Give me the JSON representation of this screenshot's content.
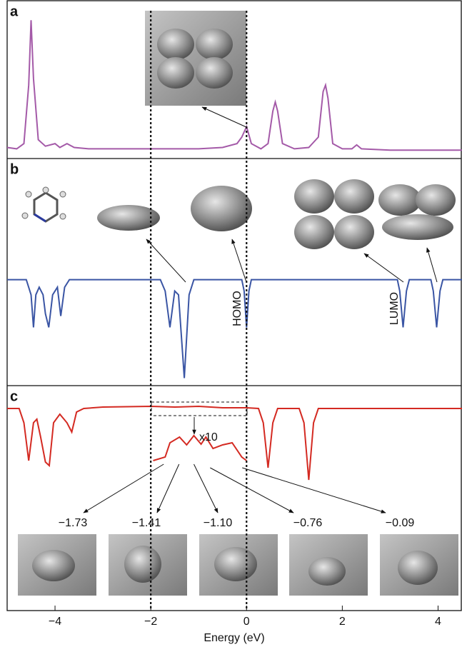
{
  "chart_data": [
    {
      "type": "line",
      "panel_label": "a",
      "xlim": [
        -5,
        4.5
      ],
      "ylim": [
        -6.5,
        115
      ],
      "vlines": [
        -2,
        0
      ],
      "series": [
        {
          "color": "#a45aa8",
          "x": [
            -5.0,
            -4.8,
            -4.65,
            -4.55,
            -4.5,
            -4.45,
            -4.35,
            -4.2,
            -4.0,
            -3.9,
            -3.75,
            -3.6,
            -3.3,
            -3.0,
            -2.0,
            -1.0,
            -0.5,
            -0.2,
            -0.1,
            0.0,
            0.1,
            0.3,
            0.45,
            0.55,
            0.6,
            0.65,
            0.75,
            1.0,
            1.3,
            1.5,
            1.6,
            1.65,
            1.7,
            1.8,
            2.0,
            2.2,
            2.3,
            2.4,
            3.0,
            4.5
          ],
          "values": [
            2,
            1,
            5,
            50,
            100,
            55,
            8,
            3,
            5,
            2,
            5,
            2,
            1,
            1,
            1,
            1,
            2,
            5,
            10,
            18,
            5,
            1,
            5,
            30,
            37,
            30,
            5,
            1,
            2,
            10,
            45,
            50,
            40,
            5,
            1,
            1,
            4,
            1,
            0,
            0
          ]
        }
      ]
    },
    {
      "type": "line",
      "panel_label": "b",
      "xlim": [
        -5,
        4.5
      ],
      "ylim": [
        -140,
        160
      ],
      "annotations": [
        "HOMO",
        "LUMO"
      ],
      "series": [
        {
          "color": "#3a55a4",
          "x": [
            -5.0,
            -4.6,
            -4.5,
            -4.45,
            -4.4,
            -4.33,
            -4.25,
            -4.2,
            -4.13,
            -4.05,
            -3.95,
            -3.88,
            -3.8,
            -3.7,
            -1.8,
            -1.7,
            -1.6,
            -1.5,
            -1.42,
            -1.3,
            -1.2,
            -1.1,
            -0.1,
            -0.05,
            0.0,
            0.05,
            0.1,
            3.15,
            3.2,
            3.27,
            3.34,
            3.4,
            3.85,
            3.9,
            3.97,
            4.04,
            4.1,
            4.5
          ],
          "values": [
            0,
            0,
            -20,
            -63,
            -20,
            -10,
            -20,
            -45,
            -63,
            -20,
            -10,
            -48,
            -10,
            0,
            0,
            -15,
            -63,
            -15,
            -20,
            -130,
            -20,
            0,
            0,
            -15,
            -63,
            -15,
            0,
            0,
            -15,
            -63,
            -15,
            0,
            0,
            -15,
            -63,
            -15,
            0,
            0
          ]
        }
      ]
    },
    {
      "type": "line",
      "panel_label": "c",
      "xlim": [
        -5,
        4.5
      ],
      "ylim": [
        -283,
        32
      ],
      "x_label": "Energy (eV)",
      "xticks": [
        {
          "value": -4,
          "label": "−4"
        },
        {
          "value": -2,
          "label": "−2"
        },
        0,
        2,
        4
      ],
      "magnification": "x10",
      "annotations": {
        "values": [
          -1.73,
          -1.41,
          -1.1,
          -0.76,
          -0.09
        ],
        "value_labels": [
          "−1.73",
          "−1.41",
          "−1.10",
          "−0.76",
          "−0.09"
        ]
      },
      "series": [
        {
          "color": "#d42a22",
          "x": [
            -5.0,
            -4.75,
            -4.65,
            -4.55,
            -4.45,
            -4.38,
            -4.3,
            -4.2,
            -4.12,
            -4.03,
            -3.9,
            -3.75,
            -3.65,
            -3.55,
            -3.4,
            -3.0,
            -2.0,
            -1.5,
            -1.0,
            -0.5,
            0.0,
            0.25,
            0.35,
            0.45,
            0.55,
            0.65,
            1.1,
            1.2,
            1.3,
            1.4,
            1.5,
            4.5
          ],
          "values": [
            0,
            0,
            -20,
            -73,
            -20,
            -15,
            -40,
            -75,
            -80,
            -20,
            -8,
            -20,
            -33,
            -5,
            0,
            2,
            3,
            2,
            3,
            1,
            1,
            0,
            -20,
            -83,
            -20,
            0,
            0,
            -20,
            -100,
            -20,
            0,
            0
          ]
        },
        {
          "color": "#d42a22",
          "x": [
            -1.95,
            -1.7,
            -1.6,
            -1.4,
            -1.25,
            -1.1,
            -0.95,
            -0.85,
            -0.7,
            -0.5,
            -0.3,
            -0.1,
            0.0
          ],
          "values": [
            -73,
            -68,
            -48,
            -40,
            -51,
            -38,
            -50,
            -40,
            -56,
            -51,
            -48,
            -68,
            -73
          ]
        }
      ]
    }
  ]
}
